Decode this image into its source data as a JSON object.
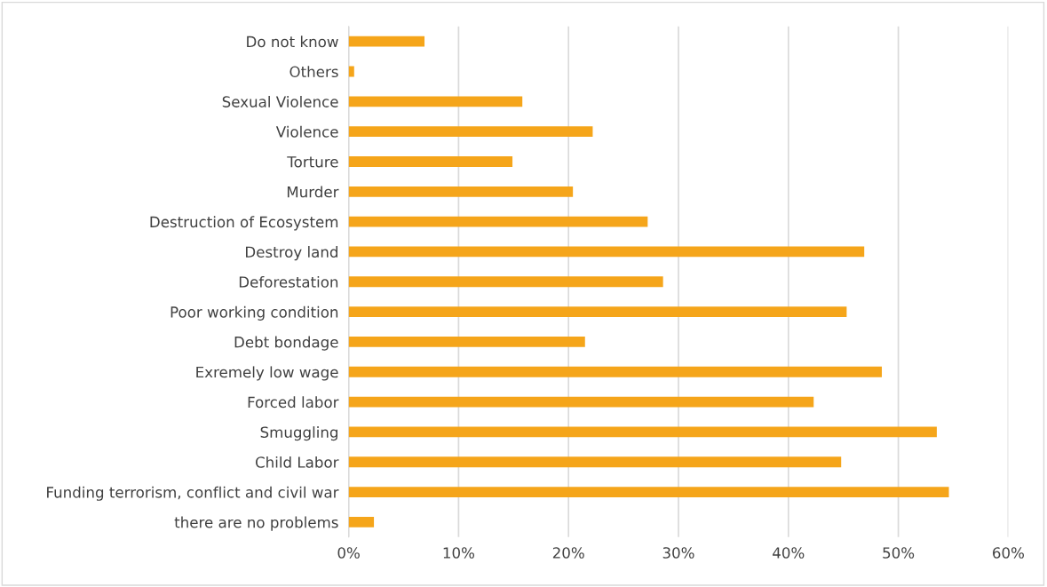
{
  "chart_data": {
    "type": "bar",
    "orientation": "horizontal",
    "categories": [
      "Do not know",
      "Others",
      "Sexual Violence",
      "Violence",
      "Torture",
      "Murder",
      "Destruction of Ecosystem",
      "Destroy land",
      "Deforestation",
      "Poor working condition",
      "Debt bondage",
      "Exremely low wage",
      "Forced labor",
      "Smuggling",
      "Child Labor",
      "Funding terrorism, conflict and civil war",
      "there are no problems"
    ],
    "values": [
      6.9,
      0.5,
      15.8,
      22.2,
      14.9,
      20.4,
      27.2,
      46.9,
      28.6,
      45.3,
      21.5,
      48.5,
      42.3,
      53.5,
      44.8,
      54.6,
      2.3
    ],
    "color": "#f5a51a",
    "xlim": [
      0,
      60
    ],
    "xticks": [
      {
        "value": 0,
        "label": "0%"
      },
      {
        "value": 10,
        "label": "10%"
      },
      {
        "value": 20,
        "label": "20%"
      },
      {
        "value": 30,
        "label": "30%"
      },
      {
        "value": 40,
        "label": "40%"
      },
      {
        "value": 50,
        "label": "50%"
      },
      {
        "value": 60,
        "label": "60%"
      }
    ],
    "grid": "x",
    "legend": false
  }
}
